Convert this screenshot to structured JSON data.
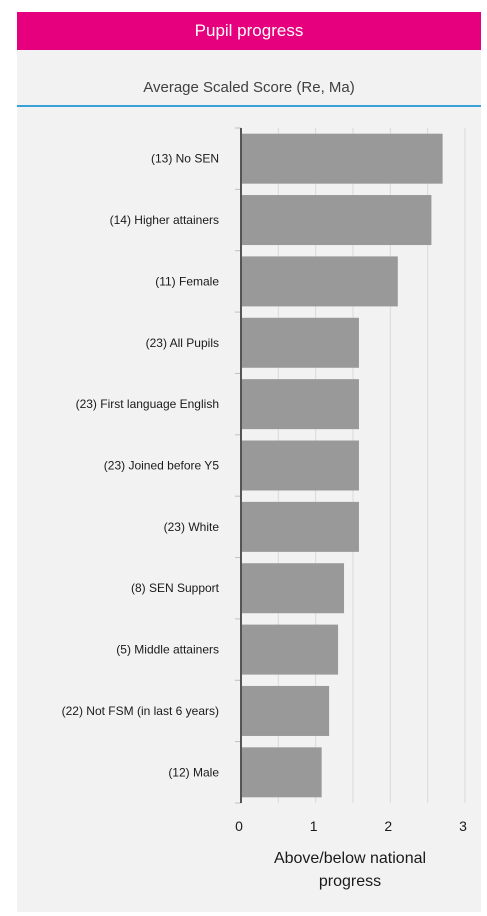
{
  "header": {
    "title": "Pupil progress",
    "subtitle": "Average Scaled Score (Re, Ma)",
    "accent_color": "#e6007e",
    "rule_color": "#3aa0d8"
  },
  "chart_data": {
    "type": "bar",
    "orientation": "horizontal",
    "categories": [
      "(13) No SEN",
      "(14) Higher attainers",
      "(11) Female",
      "(23) All Pupils",
      "(23) First language English",
      "(23) Joined before Y5",
      "(23) White",
      "(8) SEN Support",
      "(5) Middle attainers",
      "(22) Not FSM (in last 6 years)",
      "(12) Male"
    ],
    "values": [
      2.7,
      2.55,
      2.1,
      1.58,
      1.58,
      1.58,
      1.58,
      1.38,
      1.3,
      1.18,
      1.08
    ],
    "xlabel_lines": [
      "Above/below national",
      "progress"
    ],
    "xlim": [
      0,
      3
    ],
    "xticks": [
      "0",
      "1",
      "2",
      "3"
    ],
    "grid": "vertical",
    "bar_color": "#999999"
  }
}
